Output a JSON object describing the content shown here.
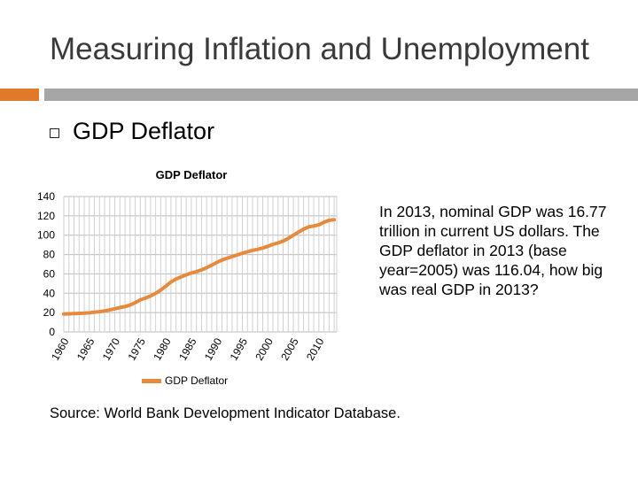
{
  "slide": {
    "title": "Measuring Inflation and Unemployment",
    "bullet": "GDP Deflator",
    "question": "In 2013, nominal GDP was 16.77 trillion in current US dollars. The GDP deflator in 2013 (base year=2005) was 116.04, how big was real GDP in 2013?",
    "source": "Source: World Bank Development Indicator Database."
  },
  "colors": {
    "accent": "#e07a2a",
    "accent_bar": "#a6a6a6",
    "series": "#e68a3e"
  },
  "chart_data": {
    "type": "line",
    "title": "GDP Deflator",
    "xlabel": "",
    "ylabel": "",
    "ylim": [
      0,
      140
    ],
    "yticks": [
      "0",
      "20",
      "40",
      "60",
      "80",
      "100",
      "120",
      "140"
    ],
    "xticks": [
      "1960",
      "1965",
      "1970",
      "1975",
      "1980",
      "1985",
      "1990",
      "1995",
      "2000",
      "2005",
      "2010"
    ],
    "grid": true,
    "legend": "bottom",
    "x": [
      1960,
      1961,
      1962,
      1963,
      1964,
      1965,
      1966,
      1967,
      1968,
      1969,
      1970,
      1971,
      1972,
      1973,
      1974,
      1975,
      1976,
      1977,
      1978,
      1979,
      1980,
      1981,
      1982,
      1983,
      1984,
      1985,
      1986,
      1987,
      1988,
      1989,
      1990,
      1991,
      1992,
      1993,
      1994,
      1995,
      1996,
      1997,
      1998,
      1999,
      2000,
      2001,
      2002,
      2003,
      2004,
      2005,
      2006,
      2007,
      2008,
      2009,
      2010,
      2011,
      2012,
      2013
    ],
    "series": [
      {
        "name": "GDP Deflator",
        "values": [
          18.6,
          18.8,
          19.0,
          19.2,
          19.5,
          19.8,
          20.4,
          21.0,
          21.8,
          22.8,
          24.0,
          25.2,
          26.3,
          27.8,
          30.3,
          33.1,
          35.0,
          37.2,
          39.9,
          43.3,
          47.3,
          51.6,
          54.7,
          56.9,
          59.0,
          60.9,
          62.3,
          64.1,
          66.4,
          69.1,
          71.8,
          74.4,
          76.2,
          78.0,
          79.6,
          81.4,
          82.9,
          84.4,
          85.4,
          86.7,
          88.6,
          90.6,
          92.0,
          94.0,
          96.7,
          100.0,
          103.2,
          106.2,
          108.6,
          109.5,
          110.8,
          113.4,
          115.4,
          116.0
        ]
      }
    ]
  }
}
